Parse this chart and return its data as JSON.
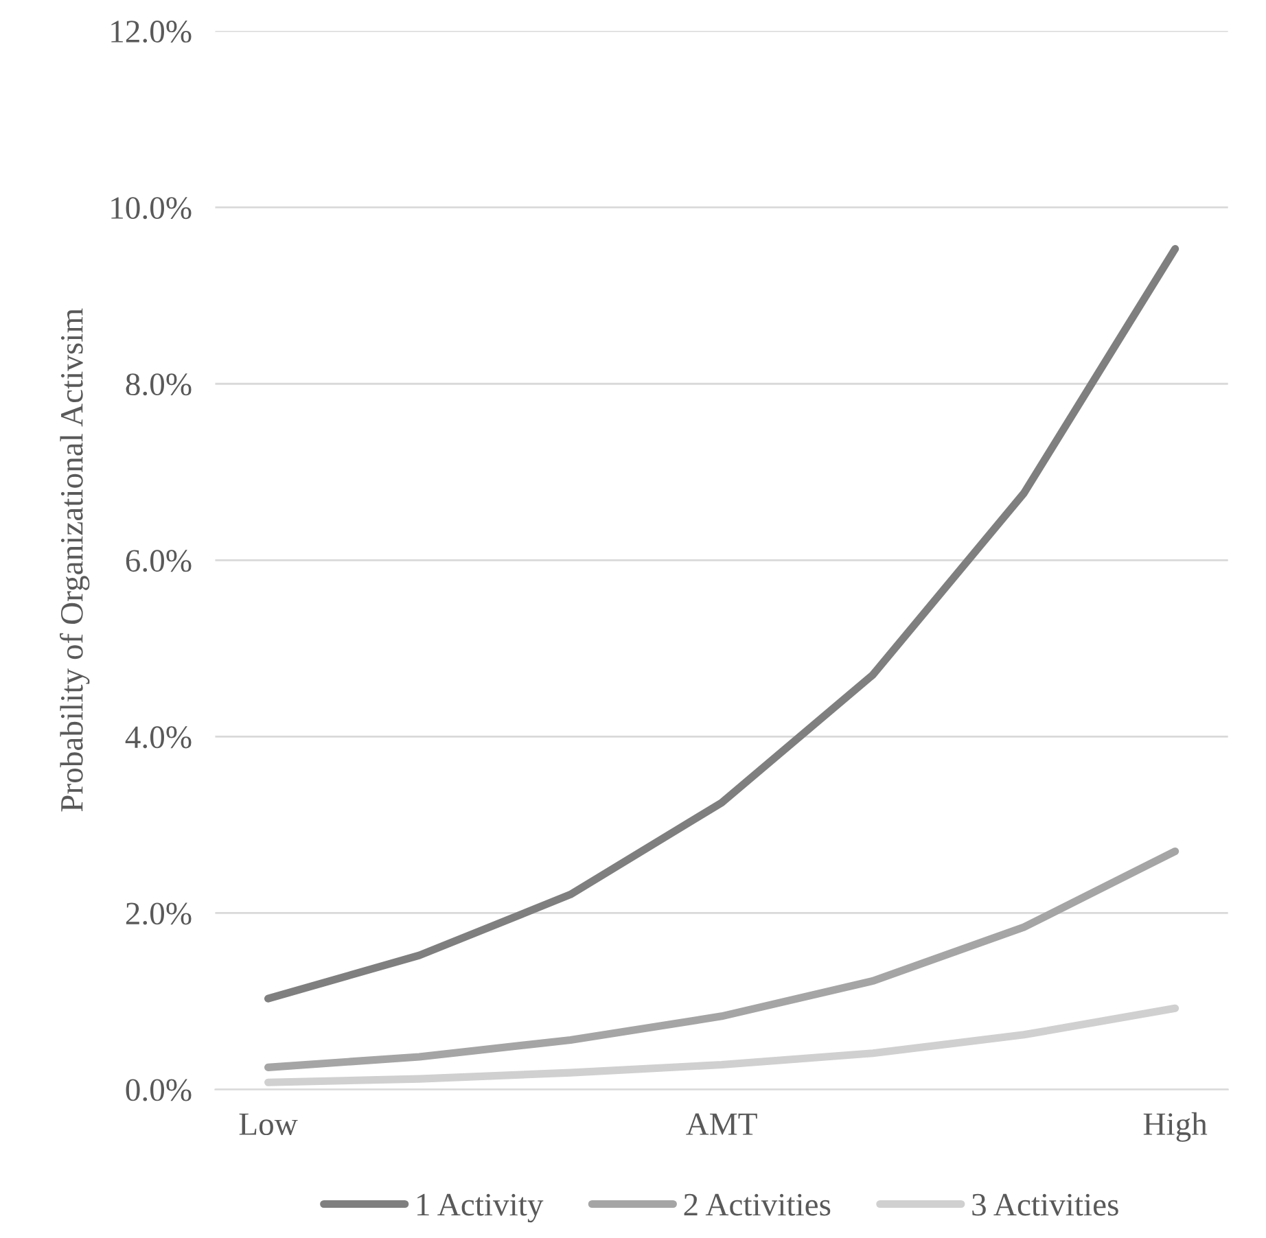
{
  "chart_data": {
    "type": "line",
    "ylabel": "Probability of Organizational Activsim",
    "categories": [
      "Low",
      null,
      null,
      "AMT",
      null,
      null,
      "High"
    ],
    "series": [
      {
        "name": "1 Activity",
        "color": "#7f7f7f",
        "values": [
          1.03,
          1.52,
          2.21,
          3.25,
          4.7,
          6.76,
          9.53
        ]
      },
      {
        "name": "2 Activities",
        "color": "#a5a5a5",
        "values": [
          0.25,
          0.37,
          0.56,
          0.83,
          1.23,
          1.84,
          2.7
        ]
      },
      {
        "name": "3 Activities",
        "color": "#d0d0d0",
        "values": [
          0.08,
          0.12,
          0.19,
          0.28,
          0.41,
          0.62,
          0.92
        ]
      }
    ],
    "ylim": [
      0,
      12
    ],
    "yticks": [
      {
        "value": 0,
        "label": "0.0%"
      },
      {
        "value": 2,
        "label": "2.0%"
      },
      {
        "value": 4,
        "label": "4.0%"
      },
      {
        "value": 6,
        "label": "6.0%"
      },
      {
        "value": 8,
        "label": "8.0%"
      },
      {
        "value": 10,
        "label": "10.0%"
      },
      {
        "value": 12,
        "label": "12.0%"
      }
    ],
    "grid": "y",
    "legend": "bottom",
    "marker": "none",
    "line_style": "solid"
  }
}
